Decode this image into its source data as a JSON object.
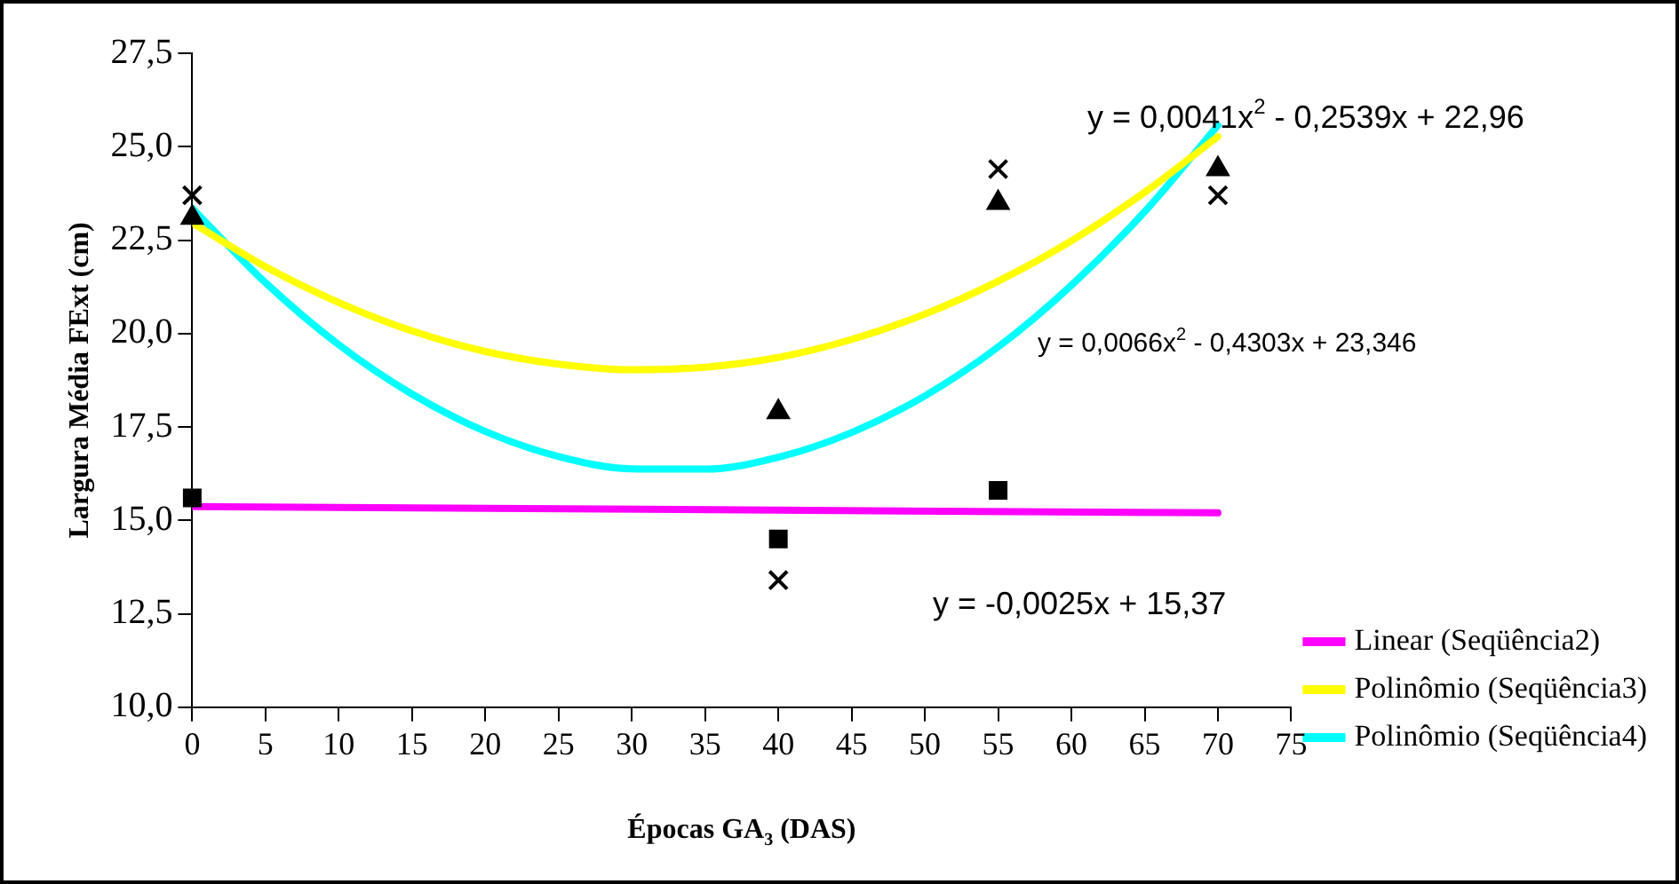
{
  "chart_data": {
    "type": "scatter",
    "xlabel": "Épocas GA$_{3}$ (DAS)",
    "ylabel": "Largura Média FExt (cm)",
    "xlim": [
      0,
      75
    ],
    "xticks": [
      0,
      5,
      10,
      15,
      20,
      25,
      30,
      35,
      40,
      45,
      50,
      55,
      60,
      65,
      70,
      75
    ],
    "ylim": [
      10,
      27.5
    ],
    "yticks": [
      {
        "value": 10,
        "label": "10,0"
      },
      {
        "value": 12.5,
        "label": "12,5"
      },
      {
        "value": 15,
        "label": "15,0"
      },
      {
        "value": 17.5,
        "label": "17,5"
      },
      {
        "value": 20,
        "label": "20,0"
      },
      {
        "value": 22.5,
        "label": "22,5"
      },
      {
        "value": 25,
        "label": "25,0"
      },
      {
        "value": 27.5,
        "label": "27,5"
      }
    ],
    "grid": false,
    "legend": "bottom right",
    "series": [
      {
        "type": "scatter",
        "marker": "square",
        "color": "#000000",
        "x": [
          0,
          40,
          55
        ],
        "values": [
          15.6,
          14.5,
          15.8
        ]
      },
      {
        "type": "scatter",
        "marker": "triangle",
        "color": "#000000",
        "x": [
          0,
          40,
          55,
          70
        ],
        "values": [
          23.1,
          17.9,
          23.5,
          24.4
        ]
      },
      {
        "type": "scatter",
        "marker": "cross",
        "color": "#000000",
        "x": [
          0,
          40,
          55,
          70
        ],
        "values": [
          23.7,
          13.4,
          24.4,
          23.7
        ]
      },
      {
        "type": "line",
        "marker": "none",
        "name": "Linear (Seqüência2)",
        "color": "#ff00ff",
        "x": [
          0,
          70
        ],
        "values": [
          15.37,
          15.2
        ]
      },
      {
        "type": "line",
        "marker": "none",
        "name": "Polinômio (Seqüência3)",
        "color": "#ffff00",
        "x": [
          0,
          5,
          10,
          15,
          20,
          25,
          30,
          35,
          40,
          45,
          50,
          55,
          60,
          65,
          70
        ],
        "values": [
          22.96,
          21.79,
          20.83,
          20.07,
          19.52,
          19.18,
          19.03,
          19.1,
          19.36,
          19.84,
          20.52,
          21.4,
          22.48,
          23.78,
          25.27
        ]
      },
      {
        "type": "line",
        "marker": "none",
        "name": "Polinômio (Seqüência4)",
        "color": "#00ffff",
        "x": [
          0,
          5,
          10,
          15,
          20,
          25,
          30,
          35,
          40,
          45,
          50,
          55,
          60,
          65,
          70
        ],
        "values": [
          23.35,
          21.36,
          19.7,
          18.38,
          17.38,
          16.71,
          16.38,
          16.37,
          16.69,
          17.35,
          18.33,
          19.64,
          21.29,
          23.26,
          25.57
        ]
      }
    ],
    "annotations": [
      "y = 0,0041x$^{2}$ - 0,2539x + 22,96",
      "y = 0,0066x$^{2}$ - 0,4303x + 23,346",
      "y = -0,0025x + 15,37"
    ]
  }
}
